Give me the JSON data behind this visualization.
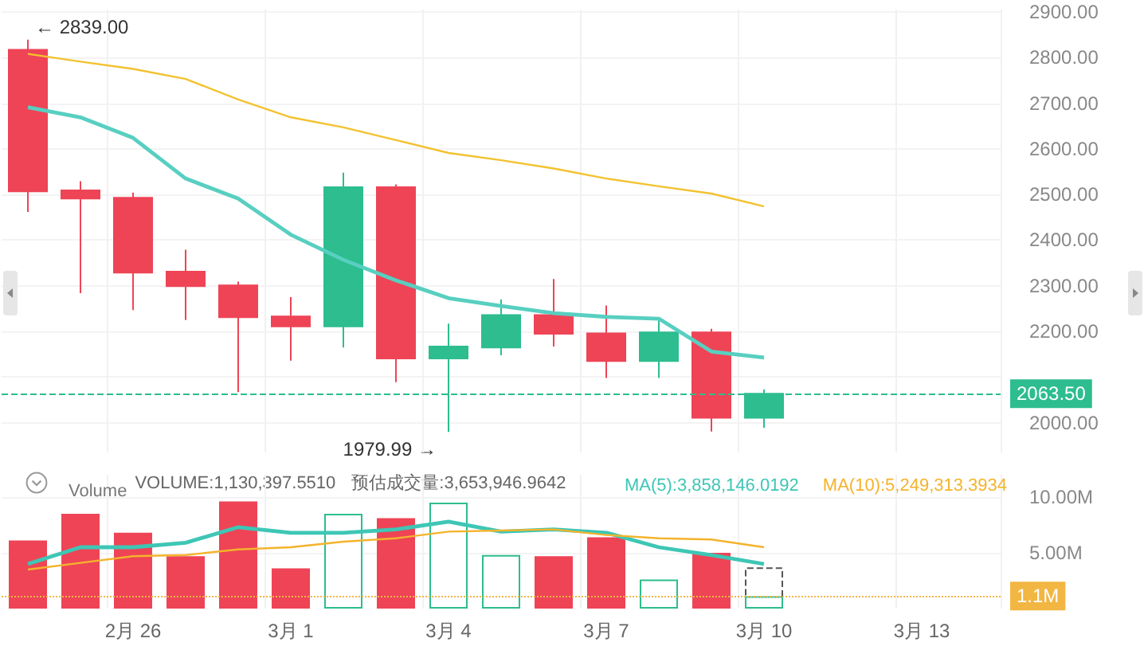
{
  "chart_data": [
    {
      "type": "candlestick",
      "categories": [
        null,
        null,
        null,
        null,
        null,
        null,
        null,
        null,
        null,
        null,
        null,
        null,
        null,
        null,
        null,
        null,
        null,
        null,
        null
      ],
      "ohlc": [
        [
          2817,
          2839,
          2462,
          2507
        ],
        [
          2509,
          2529,
          2284,
          2491
        ],
        [
          2493,
          2504,
          2247,
          2329
        ],
        [
          2331,
          2379,
          2225,
          2299
        ],
        [
          2301,
          2309,
          2067,
          2231
        ],
        [
          2233,
          2275,
          2136,
          2211
        ],
        [
          2211,
          2548,
          2165,
          2516
        ],
        [
          2516,
          2522,
          2089,
          2141
        ],
        [
          2141,
          2217,
          1979.99,
          2167
        ],
        [
          2165,
          2270,
          2148,
          2236
        ],
        [
          2236,
          2315,
          2167,
          2195
        ],
        [
          2196,
          2257,
          2098,
          2135
        ],
        [
          2135,
          2225,
          2098,
          2198
        ],
        [
          2198,
          2206,
          1981,
          2011
        ],
        [
          2011,
          2073,
          1989,
          2063.5
        ],
        null,
        null,
        null,
        null
      ],
      "colors": [
        "#ee4456",
        "#ee4456",
        "#ee4456",
        "#ee4456",
        "#ee4456",
        "#ee4456",
        "#2dbd8f",
        "#ee4456",
        "#2dbd8f",
        "#2dbd8f",
        "#ee4456",
        "#ee4456",
        "#2dbd8f",
        "#ee4456",
        "#2dbd8f",
        null,
        null,
        null,
        null
      ],
      "series": [
        {
          "type": "line",
          "color": "#58cfc0",
          "values": [
            2691,
            2669,
            2624,
            2535,
            2491,
            2412,
            2357,
            2312,
            2273,
            2256,
            2240,
            2232,
            2228,
            2156,
            2143,
            null,
            null,
            null,
            null
          ]
        },
        {
          "type": "line",
          "color": "#f2c230",
          "values": [
            2808,
            2791,
            2775,
            2753,
            2708,
            2669,
            2647,
            2619,
            2591,
            2575,
            2557,
            2535,
            2518,
            2502,
            2474,
            null,
            null,
            null,
            null
          ]
        }
      ],
      "ylim": [
        1935,
        2905
      ],
      "yticks": [
        {
          "value": 2000,
          "label": "2000.00"
        },
        {
          "value": 2100,
          "label": null
        },
        {
          "value": 2200,
          "label": "2200.00"
        },
        {
          "value": 2300,
          "label": "2300.00"
        },
        {
          "value": 2400,
          "label": "2400.00"
        },
        {
          "value": 2500,
          "label": "2500.00"
        },
        {
          "value": 2600,
          "label": "2600.00"
        },
        {
          "value": 2700,
          "label": "2700.00"
        },
        {
          "value": 2800,
          "label": "2800.00"
        },
        {
          "value": 2900,
          "label": "2900.00"
        }
      ],
      "ref_lines": [
        {
          "axis": "y",
          "value": 2063.5,
          "label": "2063.50",
          "color": "#2dbd8f",
          "line_style": "dashed"
        }
      ],
      "annotations": [
        "← 2839.00",
        "1979.99 →"
      ],
      "grid": true,
      "marker": "none",
      "tick_labels": "y"
    },
    {
      "type": "bar",
      "title": "Volume",
      "categories": [
        null,
        null,
        "2月 26",
        null,
        null,
        "3月 1",
        null,
        null,
        "3月 4",
        null,
        null,
        "3月 7",
        null,
        null,
        "3月 10",
        null,
        null,
        "3月 13",
        null
      ],
      "series": [
        {
          "type": "bar",
          "colors": [
            "#ee4456",
            "#ee4456",
            "#ee4456",
            "#ee4456",
            "#ee4456",
            "#ee4456",
            "#2dbd8f",
            "#ee4456",
            "#2dbd8f",
            "#2dbd8f",
            "#ee4456",
            "#ee4456",
            "#2dbd8f",
            "#ee4456",
            "#2dbd8f",
            null,
            null,
            null,
            null
          ],
          "values": [
            6.1,
            8.5,
            6.8,
            4.7,
            9.6,
            3.6,
            8.5,
            8.1,
            9.5,
            4.8,
            4.7,
            6.4,
            2.6,
            5.0,
            1.1,
            null,
            null,
            null,
            null
          ]
        },
        {
          "type": "bar",
          "color": "#555555",
          "line_style": "dashed",
          "values": [
            null,
            null,
            null,
            null,
            null,
            null,
            null,
            null,
            null,
            null,
            null,
            null,
            null,
            null,
            3.7,
            null,
            null,
            null,
            null
          ]
        },
        {
          "type": "line",
          "name": "MA(5):3,858,146.0192",
          "color": "#3ec6b5",
          "values": [
            4.0,
            5.5,
            5.5,
            5.9,
            7.3,
            6.8,
            6.8,
            7.1,
            7.8,
            6.9,
            7.1,
            6.8,
            5.5,
            4.8,
            4.0,
            null,
            null,
            null,
            null
          ]
        },
        {
          "type": "line",
          "name": "MA(10):5,249,313.3934",
          "color": "#f4b32c",
          "values": [
            3.5,
            4.1,
            4.7,
            4.8,
            5.3,
            5.5,
            6.0,
            6.3,
            6.9,
            7.0,
            7.1,
            6.6,
            6.3,
            6.2,
            5.5,
            null,
            null,
            null,
            null
          ]
        }
      ],
      "ylim": [
        0,
        12
      ],
      "yticks": [
        {
          "value": 5,
          "label": "5.00M"
        },
        {
          "value": 10,
          "label": "10.00M"
        }
      ],
      "ref_lines": [
        {
          "axis": "y",
          "value": 1.13,
          "label": "1.1M",
          "color": "#f2b643",
          "line_style": "dotted"
        }
      ],
      "annotations": [
        "VOLUME:1,130,397.5510",
        "预估成交量:3,653,946.9642"
      ],
      "grid": true,
      "marker": "none",
      "legend": "top right"
    }
  ]
}
